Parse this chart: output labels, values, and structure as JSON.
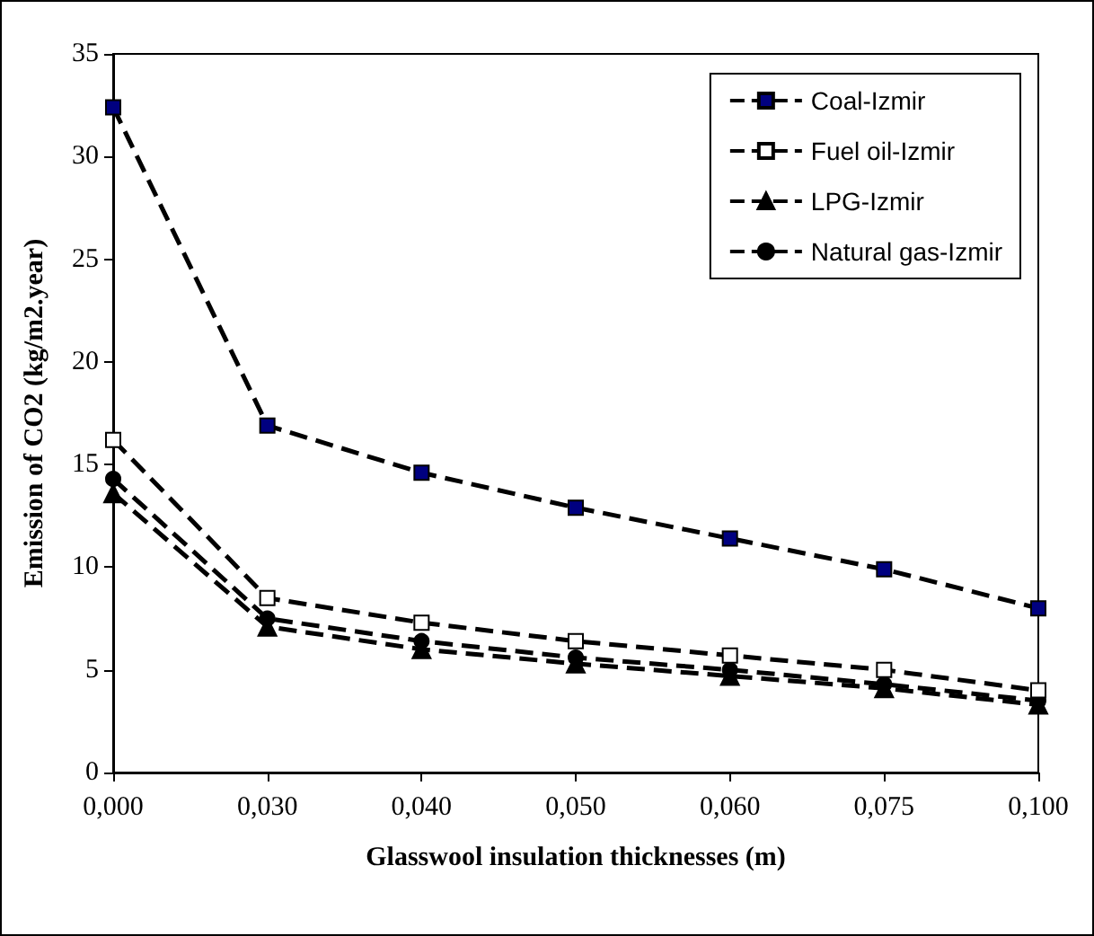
{
  "chart_data": {
    "type": "line",
    "xlabel": "Glasswool insulation thicknesses (m)",
    "ylabel": "Emission of CO2 (kg/m2.year)",
    "categories": [
      "0,000",
      "0,030",
      "0,040",
      "0,050",
      "0,060",
      "0,075",
      "0,100"
    ],
    "series": [
      {
        "name": "Coal-Izmir",
        "color": "#000080",
        "marker": "square",
        "values": [
          32.4,
          16.9,
          14.6,
          12.9,
          11.4,
          9.9,
          8.0
        ]
      },
      {
        "name": "Fuel oil-Izmir",
        "color": "#ffffff",
        "marker": "square",
        "values": [
          16.2,
          8.5,
          7.3,
          6.4,
          5.7,
          5.0,
          4.0
        ]
      },
      {
        "name": "LPG-Izmir",
        "color": "#000000",
        "marker": "triangle",
        "values": [
          13.6,
          7.1,
          6.0,
          5.3,
          4.7,
          4.1,
          3.3
        ]
      },
      {
        "name": "Natural gas-Izmir",
        "color": "#000000",
        "marker": "circle",
        "values": [
          14.3,
          7.5,
          6.4,
          5.6,
          5.0,
          4.3,
          3.5
        ]
      }
    ],
    "ylim": [
      0,
      35
    ],
    "yticks": [
      0,
      5,
      10,
      15,
      20,
      25,
      30,
      35
    ],
    "grid": false,
    "legend": "top right",
    "line_style": "dashed"
  }
}
